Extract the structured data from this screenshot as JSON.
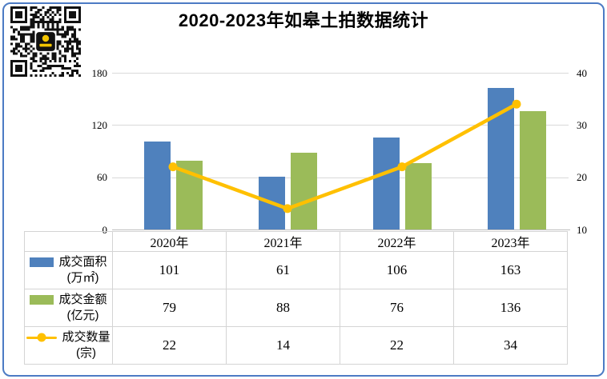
{
  "title": "2020-2023年如皋土拍数据统计",
  "qr": {
    "description": "wechat-qr-code",
    "foreground": "#111111",
    "logo_accent": "#F2C400"
  },
  "frame": {
    "border_color": "#4C7BC4",
    "background": "#FFFFFF"
  },
  "chart_data": {
    "type": "combo-bar-line",
    "title": "2020-2023年如皋土拍数据统计",
    "categories": [
      "2020年",
      "2021年",
      "2022年",
      "2023年"
    ],
    "series": [
      {
        "name": "成交面积",
        "unit": "(万㎡)",
        "chart": "bar",
        "axis": "left",
        "color": "#4F81BD",
        "values": [
          101,
          61,
          106,
          163
        ]
      },
      {
        "name": "成交金额",
        "unit": "(亿元)",
        "chart": "bar",
        "axis": "left",
        "color": "#9BBB59",
        "values": [
          79,
          88,
          76,
          136
        ]
      },
      {
        "name": "成交数量",
        "unit": "(宗)",
        "chart": "line",
        "axis": "right",
        "color": "#FFC000",
        "values": [
          22,
          14,
          22,
          34
        ]
      }
    ],
    "left_axis": {
      "min": 0,
      "max": 180,
      "ticks": [
        180,
        120,
        60,
        0
      ]
    },
    "right_axis": {
      "min": 10,
      "max": 40,
      "ticks": [
        40,
        30,
        20,
        10
      ]
    },
    "grid": true,
    "gridline_color": "#D9D9D9",
    "legend_position": "table-rows-left"
  }
}
